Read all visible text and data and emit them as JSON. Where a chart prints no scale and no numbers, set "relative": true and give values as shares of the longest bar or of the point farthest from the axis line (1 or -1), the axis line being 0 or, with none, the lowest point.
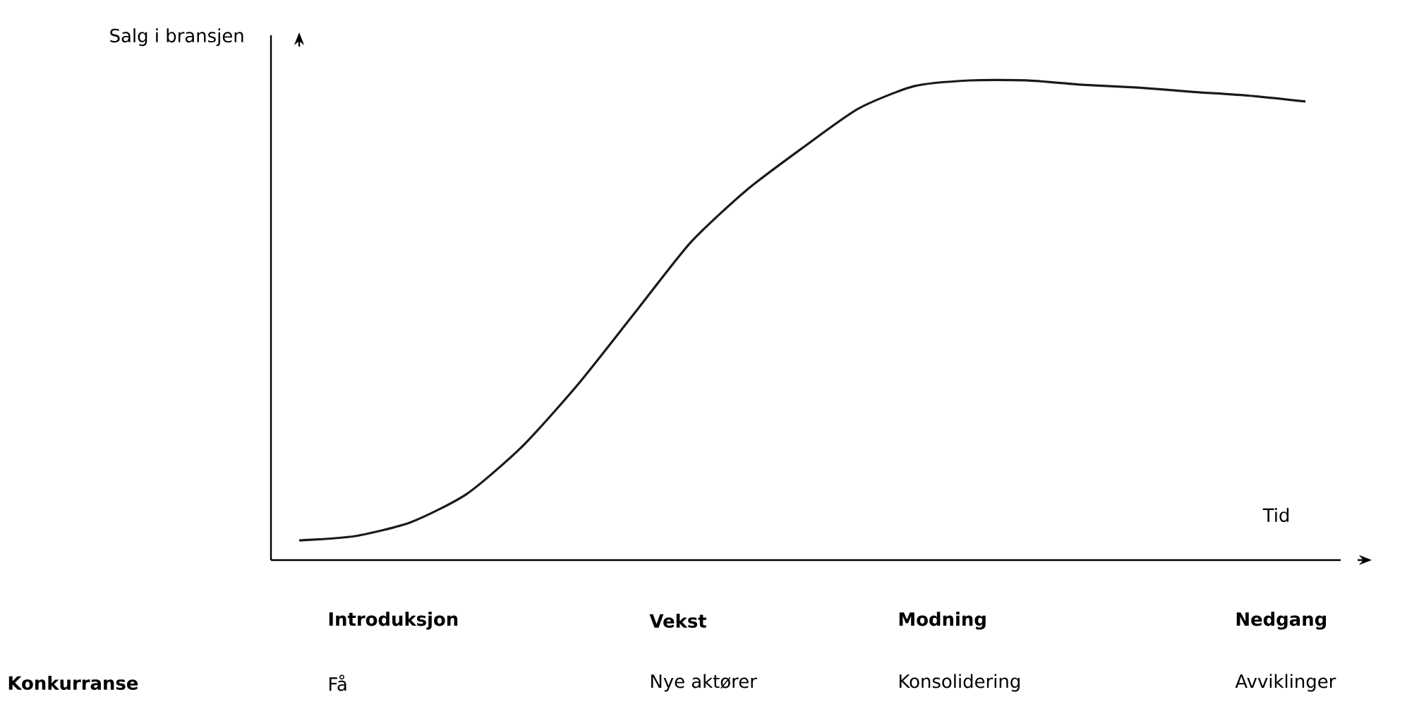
{
  "chart_data": {
    "type": "line",
    "relative": true,
    "color": "#1a1a1a",
    "marker": "none",
    "xlabel": "Tid",
    "ylabel": "Salg i bransjen",
    "categories": [
      null,
      null,
      null,
      null,
      null,
      null,
      null,
      null,
      null,
      null,
      null,
      null,
      null,
      null,
      null,
      null,
      null,
      null,
      null
    ],
    "values": [
      0.041,
      0.05,
      0.079,
      0.138,
      0.238,
      0.368,
      0.515,
      0.662,
      0.771,
      0.859,
      0.941,
      0.988,
      1.0,
      1.0,
      0.991,
      0.985,
      0.976,
      0.968,
      0.956
    ],
    "annotations": [
      "Introduksjon",
      "Vekst",
      "Modning",
      "Nedgang",
      "Konkurranse",
      "Få",
      "Nye aktører",
      "Konsolidering",
      "Avviklinger"
    ]
  }
}
